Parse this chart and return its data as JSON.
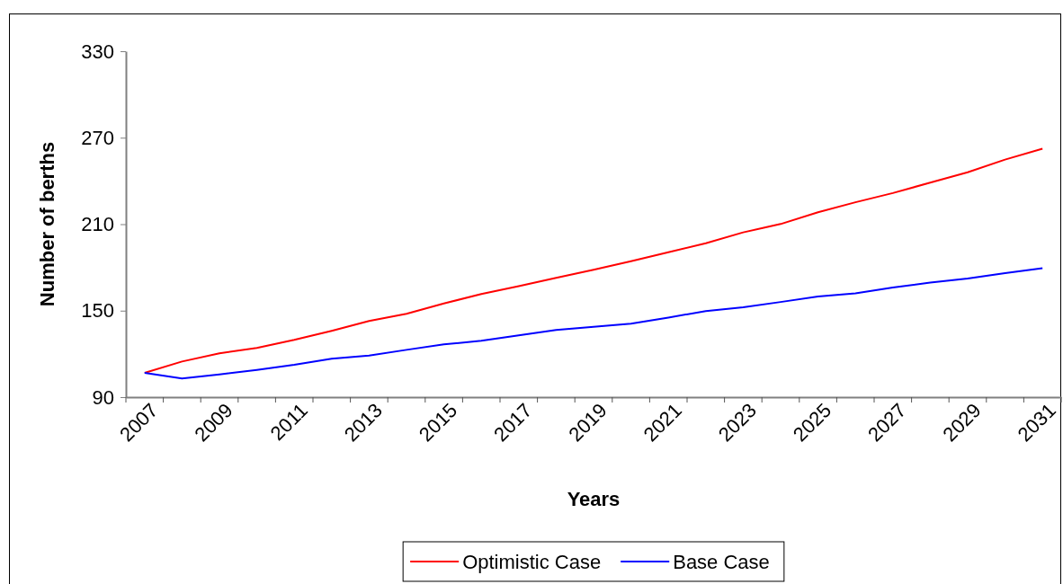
{
  "chart_data": {
    "type": "line",
    "xlabel": "Years",
    "ylabel": "Number of berths",
    "categories": [
      "2007",
      null,
      "2009",
      null,
      "2011",
      null,
      "2013",
      null,
      "2015",
      null,
      "2017",
      null,
      "2019",
      null,
      "2021",
      null,
      "2023",
      null,
      "2025",
      null,
      "2027",
      null,
      "2029",
      null,
      "2031"
    ],
    "ylim": [
      90,
      330
    ],
    "yticks": [
      90,
      150,
      210,
      270,
      330
    ],
    "grid": false,
    "legend": "bottom",
    "line_style": "solid",
    "marker": "none",
    "series": [
      {
        "name": "Optimistic Case",
        "color": "#ff0000",
        "values": [
          106.8,
          114.7,
          120.4,
          124.1,
          129.7,
          136,
          142.8,
          147.8,
          155,
          161.5,
          167,
          172.8,
          178.4,
          184.3,
          190.5,
          196.8,
          204.3,
          210.1,
          218.3,
          225.2,
          231.6,
          238.8,
          246,
          254.8,
          262.4
        ]
      },
      {
        "name": "Base Case",
        "color": "#0000ff",
        "values": [
          106.8,
          103,
          105.8,
          108.9,
          112.4,
          116.6,
          118.9,
          122.8,
          126.6,
          129.1,
          132.8,
          136.6,
          138.8,
          141,
          145.2,
          149.7,
          152.3,
          156,
          159.8,
          162,
          166,
          169.5,
          172.3,
          176,
          179.5
        ]
      }
    ]
  }
}
